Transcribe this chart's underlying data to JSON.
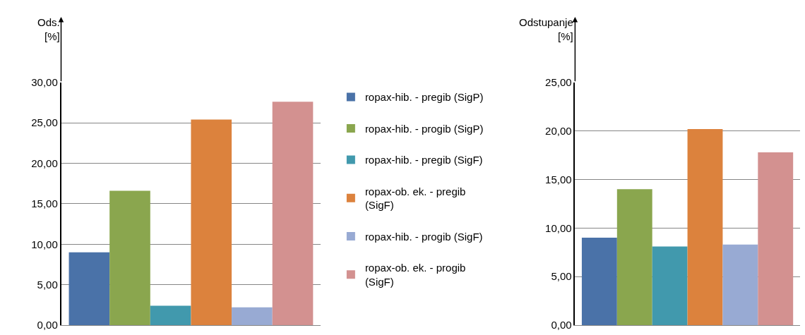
{
  "chart_data": [
    {
      "type": "bar",
      "ylabel": "Ods.\n[%]",
      "categories": [
        null
      ],
      "ylim": [
        0,
        30
      ],
      "yticks": [
        {
          "value": 0,
          "label": "0,00"
        },
        {
          "value": 5,
          "label": "5,00"
        },
        {
          "value": 10,
          "label": "10,00"
        },
        {
          "value": 15,
          "label": "15,00"
        },
        {
          "value": 20,
          "label": "20,00"
        },
        {
          "value": 25,
          "label": "25,00"
        },
        {
          "value": 30,
          "label": "30,00"
        }
      ],
      "grid": "y",
      "legend": "right",
      "series": [
        {
          "name": "ropax-hib. - pregib (SigP)",
          "color": "#4a72a8",
          "values": [
            9.0
          ]
        },
        {
          "name": "ropax-hib. - progib (SigP)",
          "color": "#8aa64e",
          "values": [
            16.6
          ]
        },
        {
          "name": "ropax-hib. - pregib (SigF)",
          "color": "#4199ad",
          "values": [
            2.4
          ]
        },
        {
          "name": "ropax-ob. ek. - pregib (SigF)",
          "color": "#dc823d",
          "values": [
            25.4
          ]
        },
        {
          "name": "ropax-hib. - progib (SigF)",
          "color": "#98aad3",
          "values": [
            2.2
          ]
        },
        {
          "name": "ropax-ob. ek. - progib (SigF)",
          "color": "#d39190",
          "values": [
            27.6
          ]
        }
      ]
    },
    {
      "type": "bar",
      "ylabel": "Odstupanje\n[%]",
      "categories": [
        null
      ],
      "ylim": [
        0,
        25
      ],
      "yticks": [
        {
          "value": 0,
          "label": "0,00"
        },
        {
          "value": 5,
          "label": "5,00"
        },
        {
          "value": 10,
          "label": "10,00"
        },
        {
          "value": 15,
          "label": "15,00"
        },
        {
          "value": 20,
          "label": "20,00"
        },
        {
          "value": 25,
          "label": "25,00"
        }
      ],
      "grid": "y",
      "series": [
        {
          "color": "#4a72a8",
          "values": [
            9.0
          ]
        },
        {
          "color": "#8aa64e",
          "values": [
            14.0
          ]
        },
        {
          "color": "#4199ad",
          "values": [
            8.1
          ]
        },
        {
          "color": "#dc823d",
          "values": [
            20.2
          ]
        },
        {
          "color": "#98aad3",
          "values": [
            8.3
          ]
        },
        {
          "color": "#d39190",
          "values": [
            17.8
          ]
        }
      ]
    }
  ]
}
